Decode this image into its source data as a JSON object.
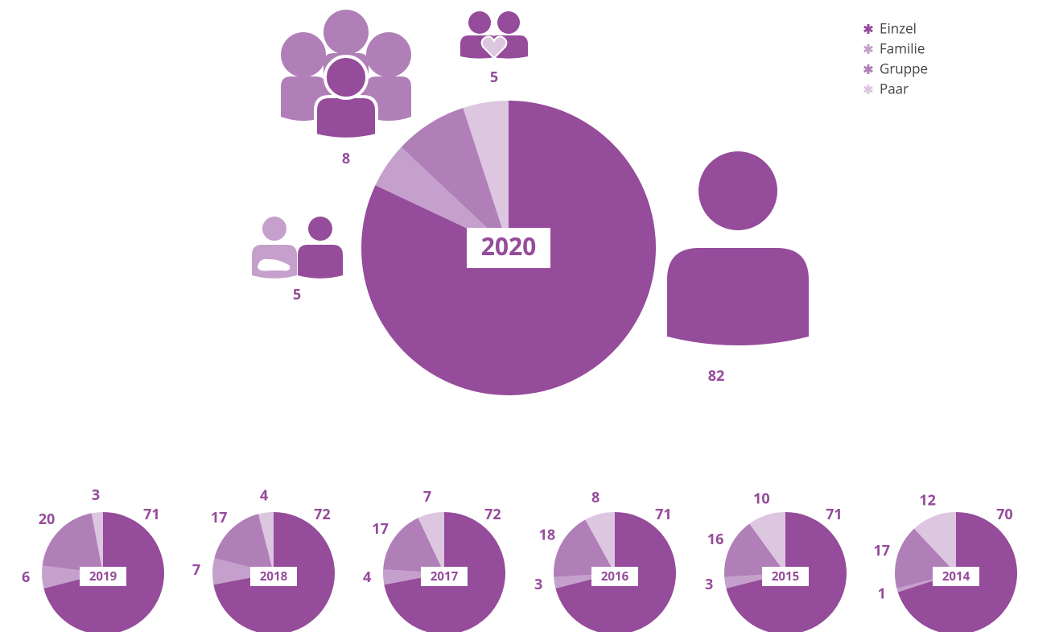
{
  "chart_data": [
    {
      "type": "pie",
      "title": "2020",
      "categories": [
        "Einzel",
        "Familie",
        "Gruppe",
        "Paar"
      ],
      "colors": [
        "#954c9a",
        "#c5a0cc",
        "#b07fb8",
        "#dcc6e0"
      ],
      "values": [
        82,
        5,
        8,
        5
      ]
    },
    {
      "type": "pie",
      "title": "2019",
      "values": [
        71,
        6,
        20,
        3
      ]
    },
    {
      "type": "pie",
      "title": "2018",
      "values": [
        72,
        7,
        17,
        4
      ]
    },
    {
      "type": "pie",
      "title": "2017",
      "values": [
        72,
        4,
        17,
        7
      ]
    },
    {
      "type": "pie",
      "title": "2016",
      "values": [
        71,
        3,
        18,
        8
      ]
    },
    {
      "type": "pie",
      "title": "2015",
      "values": [
        71,
        3,
        16,
        10
      ]
    },
    {
      "type": "pie",
      "title": "2014",
      "values": [
        70,
        1,
        17,
        12
      ]
    }
  ]
}
